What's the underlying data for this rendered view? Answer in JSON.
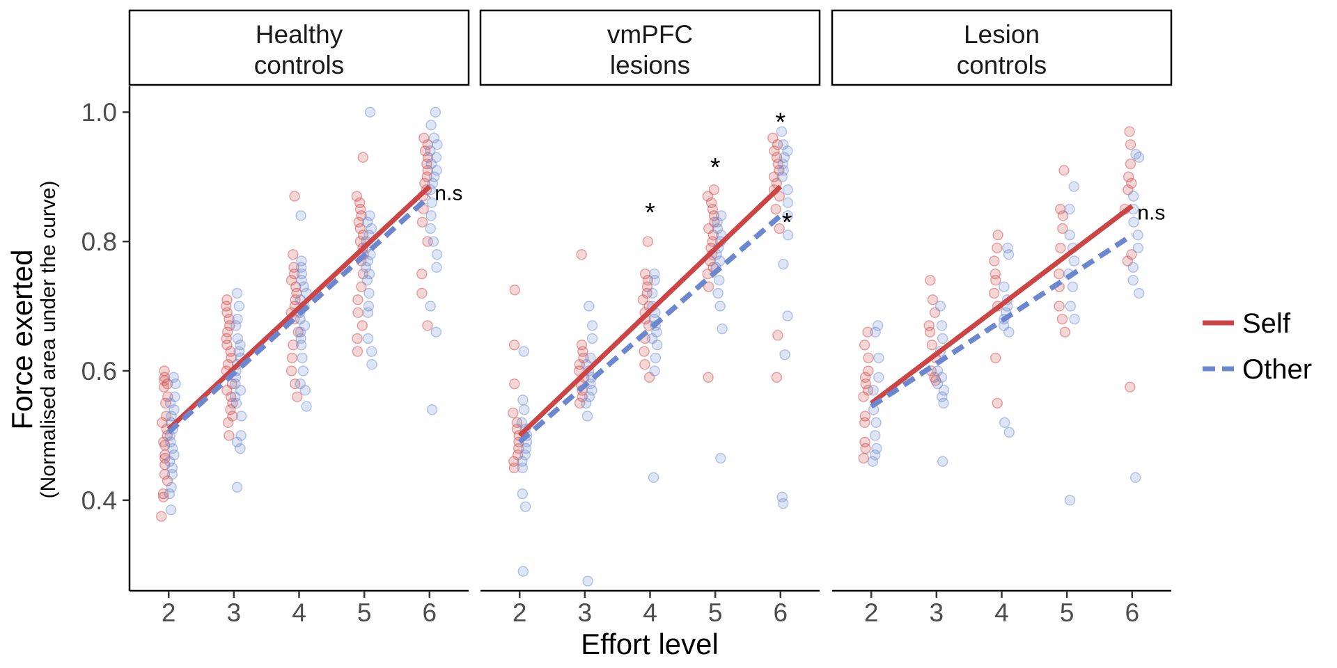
{
  "chart_data": {
    "type": "scatter",
    "xlabel": "Effort level",
    "ylabel": "Force exerted",
    "ylabel_sub": "(Normalised area under the curve)",
    "x_ticks": [
      "2",
      "3",
      "4",
      "5",
      "6"
    ],
    "y_ticks": [
      "0.4",
      "0.6",
      "0.8",
      "1.0"
    ],
    "xlim": [
      1.4,
      6.6
    ],
    "ylim": [
      0.26,
      1.04
    ],
    "grid": false,
    "legend_position": "right",
    "colors": {
      "self": "#cc4444",
      "other": "#6b87cf"
    },
    "legend": [
      {
        "label": "Self",
        "style": "solid",
        "color": "#cc4444"
      },
      {
        "label": "Other",
        "style": "dashed",
        "color": "#6b87cf"
      }
    ],
    "panels": [
      {
        "title_lines": [
          "Healthy",
          "controls"
        ],
        "series": [
          {
            "name": "Self",
            "style": "solid",
            "line": [
              [
                2,
                0.51
              ],
              [
                6,
                0.885
              ]
            ],
            "points": {
              "2": [
                0.375,
                0.405,
                0.41,
                0.43,
                0.44,
                0.455,
                0.465,
                0.47,
                0.485,
                0.49,
                0.5,
                0.51,
                0.52,
                0.53,
                0.55,
                0.56,
                0.575,
                0.58,
                0.585,
                0.59,
                0.6
              ],
              "3": [
                0.5,
                0.52,
                0.53,
                0.54,
                0.55,
                0.56,
                0.57,
                0.58,
                0.6,
                0.61,
                0.62,
                0.63,
                0.64,
                0.65,
                0.66,
                0.67,
                0.68,
                0.69,
                0.7,
                0.71
              ],
              "4": [
                0.56,
                0.58,
                0.6,
                0.62,
                0.64,
                0.66,
                0.68,
                0.69,
                0.7,
                0.71,
                0.72,
                0.73,
                0.74,
                0.75,
                0.76,
                0.78,
                0.87
              ],
              "5": [
                0.63,
                0.65,
                0.67,
                0.69,
                0.71,
                0.73,
                0.75,
                0.77,
                0.78,
                0.79,
                0.8,
                0.81,
                0.82,
                0.83,
                0.84,
                0.85,
                0.86,
                0.87,
                0.93
              ],
              "6": [
                0.67,
                0.72,
                0.75,
                0.8,
                0.83,
                0.85,
                0.87,
                0.88,
                0.89,
                0.9,
                0.91,
                0.92,
                0.93,
                0.94,
                0.95,
                0.96
              ]
            }
          },
          {
            "name": "Other",
            "style": "dashed",
            "line": [
              [
                2,
                0.505
              ],
              [
                6,
                0.87
              ]
            ],
            "points": {
              "2": [
                0.385,
                0.41,
                0.42,
                0.44,
                0.45,
                0.46,
                0.47,
                0.48,
                0.49,
                0.5,
                0.51,
                0.52,
                0.53,
                0.54,
                0.55,
                0.56,
                0.58,
                0.59
              ],
              "3": [
                0.42,
                0.48,
                0.49,
                0.5,
                0.53,
                0.55,
                0.56,
                0.57,
                0.58,
                0.59,
                0.6,
                0.61,
                0.62,
                0.63,
                0.64,
                0.65,
                0.67,
                0.68,
                0.7,
                0.72
              ],
              "4": [
                0.545,
                0.57,
                0.58,
                0.6,
                0.62,
                0.64,
                0.65,
                0.66,
                0.67,
                0.68,
                0.69,
                0.7,
                0.71,
                0.72,
                0.73,
                0.74,
                0.75,
                0.76,
                0.77,
                0.84
              ],
              "5": [
                0.61,
                0.63,
                0.65,
                0.69,
                0.7,
                0.72,
                0.74,
                0.75,
                0.76,
                0.77,
                0.78,
                0.79,
                0.8,
                0.81,
                0.82,
                0.83,
                0.84,
                1.0
              ],
              "6": [
                0.54,
                0.66,
                0.7,
                0.76,
                0.78,
                0.8,
                0.82,
                0.84,
                0.86,
                0.88,
                0.89,
                0.9,
                0.91,
                0.92,
                0.93,
                0.94,
                0.95,
                0.96,
                0.98,
                1.0
              ]
            }
          }
        ],
        "annotations": [
          {
            "text": "n.s",
            "x": 6.08,
            "y": 0.875,
            "anchor": "start"
          }
        ]
      },
      {
        "title_lines": [
          "vmPFC",
          "lesions"
        ],
        "series": [
          {
            "name": "Self",
            "style": "solid",
            "line": [
              [
                2,
                0.5
              ],
              [
                6,
                0.885
              ]
            ],
            "points": {
              "2": [
                0.45,
                0.46,
                0.47,
                0.48,
                0.49,
                0.5,
                0.51,
                0.52,
                0.535,
                0.58,
                0.64,
                0.725
              ],
              "3": [
                0.55,
                0.56,
                0.57,
                0.58,
                0.59,
                0.6,
                0.61,
                0.62,
                0.63,
                0.64,
                0.78
              ],
              "4": [
                0.59,
                0.61,
                0.63,
                0.65,
                0.67,
                0.68,
                0.69,
                0.7,
                0.71,
                0.72,
                0.73,
                0.74,
                0.75,
                0.8
              ],
              "5": [
                0.59,
                0.73,
                0.75,
                0.76,
                0.77,
                0.78,
                0.79,
                0.8,
                0.81,
                0.82,
                0.83,
                0.84,
                0.85,
                0.86,
                0.87,
                0.88
              ],
              "6": [
                0.59,
                0.655,
                0.82,
                0.85,
                0.87,
                0.88,
                0.89,
                0.9,
                0.91,
                0.92,
                0.93,
                0.94,
                0.95,
                0.96
              ]
            }
          },
          {
            "name": "Other",
            "style": "dashed",
            "line": [
              [
                2,
                0.49
              ],
              [
                6,
                0.84
              ]
            ],
            "points": {
              "2": [
                0.29,
                0.39,
                0.41,
                0.45,
                0.46,
                0.47,
                0.48,
                0.49,
                0.5,
                0.51,
                0.52,
                0.54,
                0.555,
                0.63
              ],
              "3": [
                0.275,
                0.53,
                0.55,
                0.56,
                0.57,
                0.58,
                0.59,
                0.6,
                0.61,
                0.62,
                0.65,
                0.67,
                0.7
              ],
              "4": [
                0.435,
                0.6,
                0.62,
                0.64,
                0.65,
                0.66,
                0.67,
                0.68,
                0.69,
                0.7,
                0.72,
                0.74,
                0.75
              ],
              "5": [
                0.465,
                0.665,
                0.7,
                0.72,
                0.74,
                0.76,
                0.77,
                0.78,
                0.79,
                0.8,
                0.81,
                0.82,
                0.83,
                0.84
              ],
              "6": [
                0.395,
                0.405,
                0.625,
                0.685,
                0.765,
                0.81,
                0.84,
                0.86,
                0.88,
                0.9,
                0.91,
                0.92,
                0.93,
                0.94,
                0.95,
                0.97
              ]
            }
          }
        ],
        "annotations": [
          {
            "text": "*",
            "x": 4.0,
            "y": 0.855,
            "anchor": "middle"
          },
          {
            "text": "*",
            "x": 5.0,
            "y": 0.925,
            "anchor": "middle"
          },
          {
            "text": "*",
            "x": 6.0,
            "y": 0.995,
            "anchor": "middle"
          },
          {
            "text": "*",
            "x": 6.1,
            "y": 0.84,
            "anchor": "middle"
          }
        ]
      },
      {
        "title_lines": [
          "Lesion",
          "controls"
        ],
        "series": [
          {
            "name": "Self",
            "style": "solid",
            "line": [
              [
                2,
                0.55
              ],
              [
                6,
                0.855
              ]
            ],
            "points": {
              "2": [
                0.465,
                0.48,
                0.49,
                0.52,
                0.53,
                0.56,
                0.57,
                0.58,
                0.59,
                0.6,
                0.62,
                0.64,
                0.66
              ],
              "3": [
                0.585,
                0.59,
                0.6,
                0.62,
                0.64,
                0.66,
                0.67,
                0.69,
                0.71,
                0.74
              ],
              "4": [
                0.55,
                0.62,
                0.7,
                0.72,
                0.74,
                0.75,
                0.77,
                0.79,
                0.81
              ],
              "5": [
                0.66,
                0.68,
                0.7,
                0.73,
                0.75,
                0.79,
                0.82,
                0.84,
                0.85,
                0.91
              ],
              "6": [
                0.575,
                0.77,
                0.78,
                0.85,
                0.88,
                0.89,
                0.9,
                0.92,
                0.95,
                0.97
              ]
            }
          },
          {
            "name": "Other",
            "style": "dashed",
            "line": [
              [
                2,
                0.545
              ],
              [
                6,
                0.81
              ]
            ],
            "points": {
              "2": [
                0.46,
                0.47,
                0.48,
                0.5,
                0.52,
                0.54,
                0.57,
                0.59,
                0.62,
                0.66,
                0.67
              ],
              "3": [
                0.46,
                0.55,
                0.56,
                0.57,
                0.58,
                0.59,
                0.6,
                0.63,
                0.65,
                0.67,
                0.7
              ],
              "4": [
                0.505,
                0.52,
                0.66,
                0.67,
                0.68,
                0.69,
                0.7,
                0.71,
                0.73,
                0.78,
                0.79
              ],
              "5": [
                0.4,
                0.68,
                0.7,
                0.73,
                0.75,
                0.77,
                0.79,
                0.81,
                0.85,
                0.885
              ],
              "6": [
                0.435,
                0.72,
                0.74,
                0.76,
                0.79,
                0.81,
                0.83,
                0.85,
                0.87,
                0.93,
                0.935
              ]
            }
          }
        ],
        "annotations": [
          {
            "text": "n.s",
            "x": 6.08,
            "y": 0.845,
            "anchor": "start"
          }
        ]
      }
    ]
  }
}
